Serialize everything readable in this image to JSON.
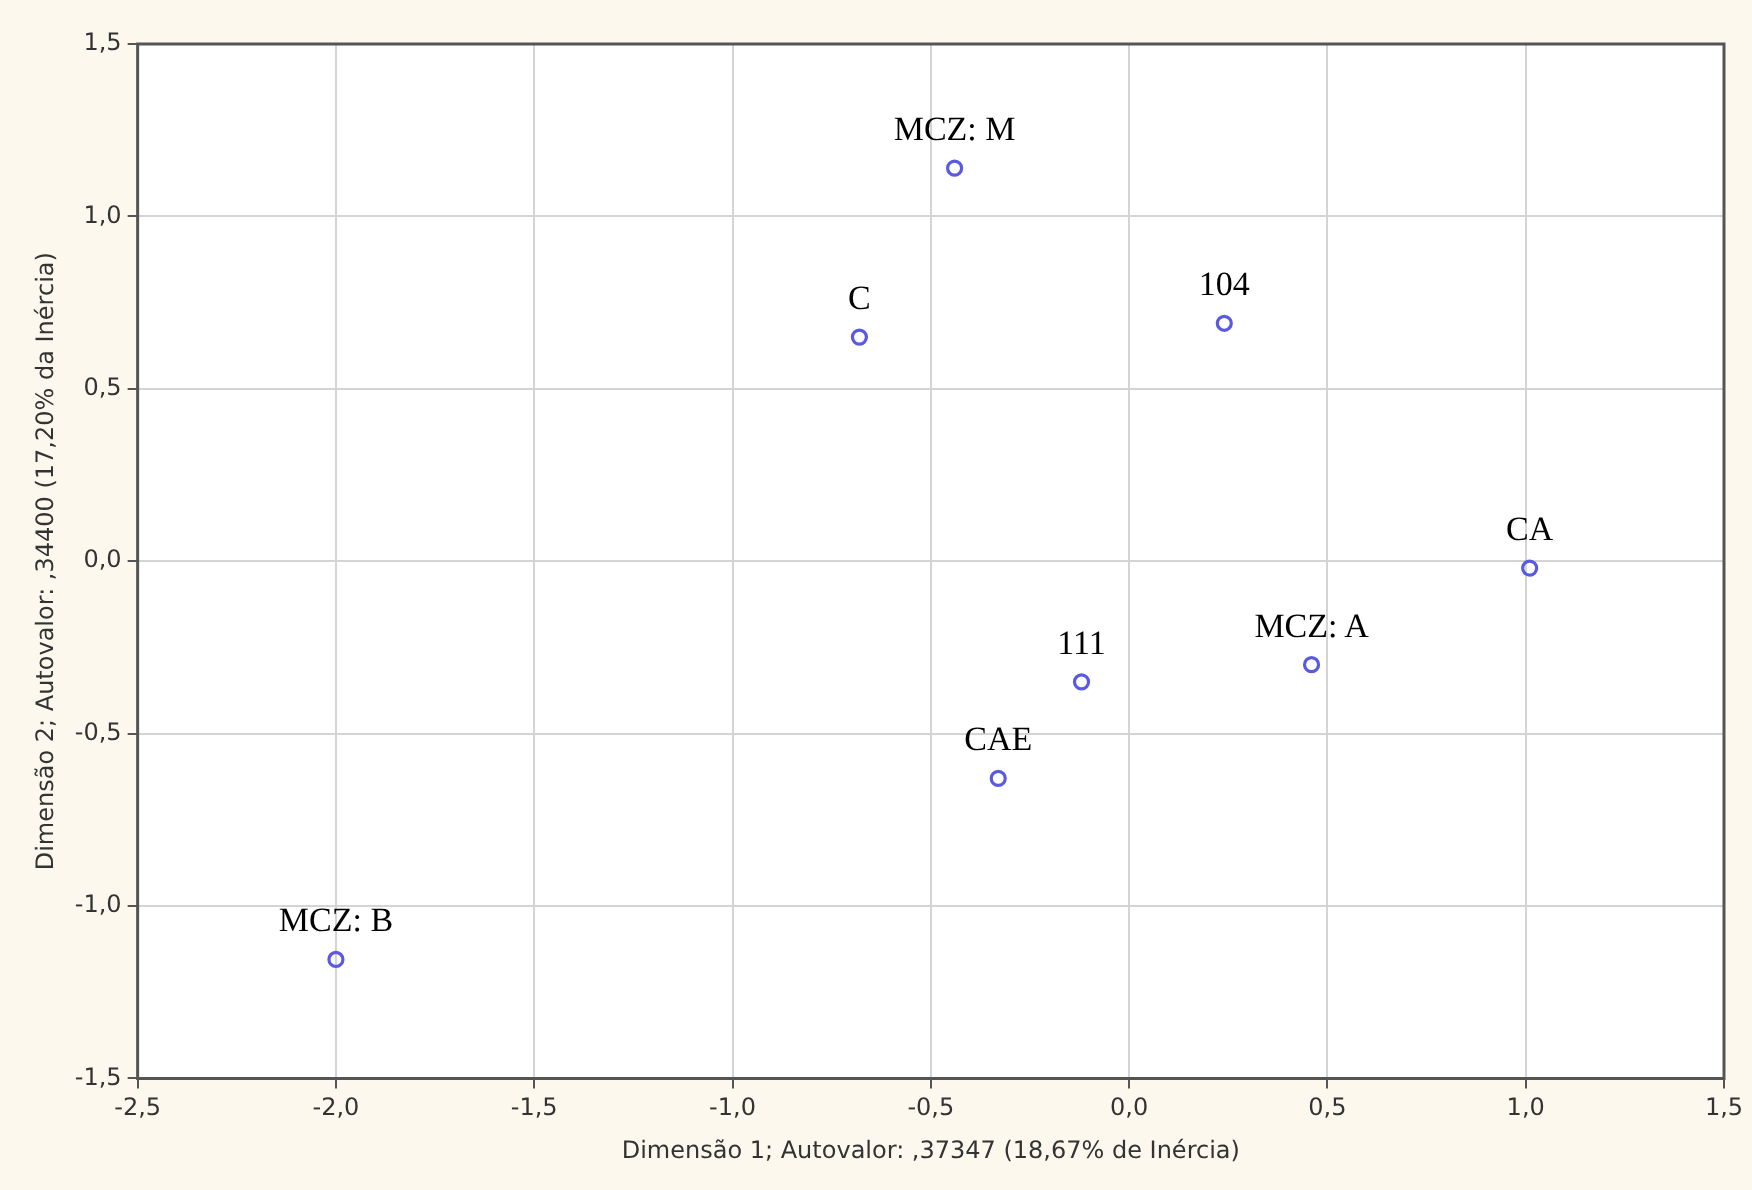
{
  "chart_data": {
    "type": "scatter",
    "xlabel": "Dimensão 1; Autovalor: ,37347 (18,67% de Inércia)",
    "ylabel": "Dimensão 2; Autovalor: ,34400 (17,20% da Inércia)",
    "series": [
      {
        "color": "#5a5ae0",
        "x": [
          -0.44,
          -0.68,
          0.24,
          1.01,
          0.46,
          -0.12,
          -0.33,
          -2.0
        ],
        "values": [
          1.14,
          0.65,
          0.69,
          -0.02,
          -0.3,
          -0.35,
          -0.63,
          -1.155
        ]
      }
    ],
    "annotations": [
      {
        "text": "MCZ: M",
        "x": -0.44,
        "y": 1.14
      },
      {
        "text": "C",
        "x": -0.68,
        "y": 0.65
      },
      {
        "text": "104",
        "x": 0.24,
        "y": 0.69
      },
      {
        "text": "CA",
        "x": 1.01,
        "y": -0.02
      },
      {
        "text": "MCZ: A",
        "x": 0.46,
        "y": -0.3
      },
      {
        "text": "111",
        "x": -0.12,
        "y": -0.35
      },
      {
        "text": "CAE",
        "x": -0.33,
        "y": -0.63
      },
      {
        "text": "MCZ: B",
        "x": -2.0,
        "y": -1.155
      }
    ],
    "xlim": [
      -2.5,
      1.5
    ],
    "xticks": [
      {
        "value": -2.5,
        "label": "-2,5"
      },
      {
        "value": -2,
        "label": "-2,0"
      },
      {
        "value": -1.5,
        "label": "-1,5"
      },
      {
        "value": -1,
        "label": "-1,0"
      },
      {
        "value": -0.5,
        "label": "-0,5"
      },
      {
        "value": 0,
        "label": "0,0"
      },
      {
        "value": 0.5,
        "label": "0,5"
      },
      {
        "value": 1,
        "label": "1,0"
      },
      {
        "value": 1.5,
        "label": "1,5"
      }
    ],
    "ylim": [
      -1.5,
      1.5
    ],
    "yticks": [
      {
        "value": -1.5,
        "label": "-1,5"
      },
      {
        "value": -1,
        "label": "-1,0"
      },
      {
        "value": -0.5,
        "label": "-0,5"
      },
      {
        "value": 0,
        "label": "0,0"
      },
      {
        "value": 0.5,
        "label": "0,5"
      },
      {
        "value": 1,
        "label": "1,0"
      },
      {
        "value": 1.5,
        "label": "1,5"
      }
    ],
    "grid": true,
    "marker": "circle",
    "legend": false
  }
}
